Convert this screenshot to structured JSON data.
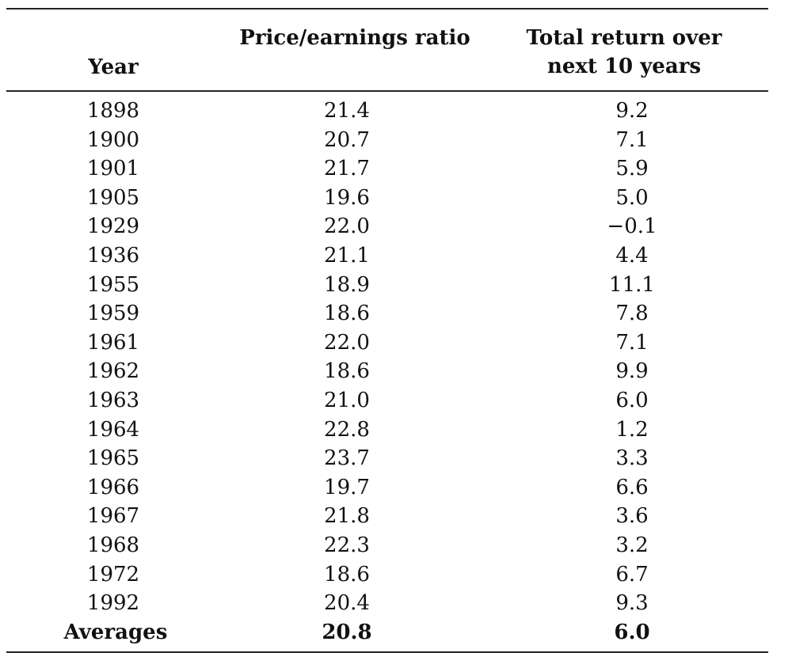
{
  "table": {
    "headers": {
      "year": "Year",
      "pe": "Price/earnings ratio",
      "return_line1": "Total return over",
      "return_line2": "next 10 years"
    },
    "rows": [
      {
        "year": "1898",
        "pe": "21.4",
        "ret": "9.2"
      },
      {
        "year": "1900",
        "pe": "20.7",
        "ret": "7.1"
      },
      {
        "year": "1901",
        "pe": "21.7",
        "ret": "5.9"
      },
      {
        "year": "1905",
        "pe": "19.6",
        "ret": "5.0"
      },
      {
        "year": "1929",
        "pe": "22.0",
        "ret": "−0.1"
      },
      {
        "year": "1936",
        "pe": "21.1",
        "ret": "4.4"
      },
      {
        "year": "1955",
        "pe": "18.9",
        "ret": "11.1"
      },
      {
        "year": "1959",
        "pe": "18.6",
        "ret": "7.8"
      },
      {
        "year": "1961",
        "pe": "22.0",
        "ret": "7.1"
      },
      {
        "year": "1962",
        "pe": "18.6",
        "ret": "9.9"
      },
      {
        "year": "1963",
        "pe": "21.0",
        "ret": "6.0"
      },
      {
        "year": "1964",
        "pe": "22.8",
        "ret": "1.2"
      },
      {
        "year": "1965",
        "pe": "23.7",
        "ret": "3.3"
      },
      {
        "year": "1966",
        "pe": "19.7",
        "ret": "6.6"
      },
      {
        "year": "1967",
        "pe": "21.8",
        "ret": "3.6"
      },
      {
        "year": "1968",
        "pe": "22.3",
        "ret": "3.2"
      },
      {
        "year": "1972",
        "pe": "18.6",
        "ret": "6.7"
      },
      {
        "year": "1992",
        "pe": "20.4",
        "ret": "9.3"
      }
    ],
    "averages": {
      "label": "Averages",
      "pe": "20.8",
      "ret": "6.0"
    }
  }
}
